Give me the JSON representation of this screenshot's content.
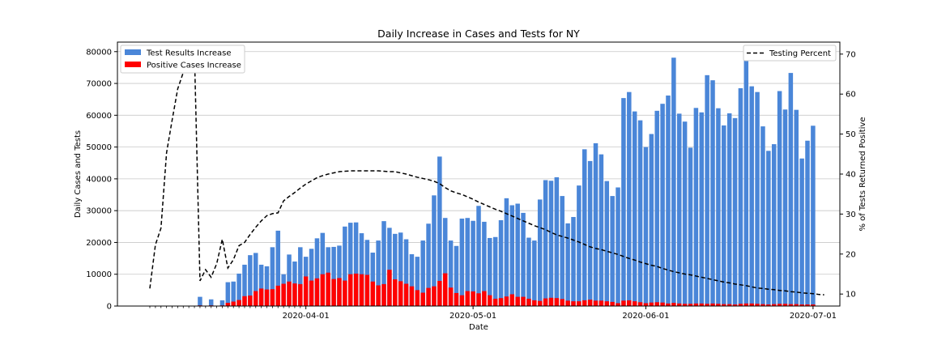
{
  "chart_data": {
    "type": "bar",
    "title": "Daily Increase in Cases and Tests for NY",
    "xlabel": "Date",
    "ylabel": "Daily Cases and Tests",
    "y2label": "% of Tests Returned Positive",
    "ylim": [
      0,
      83000
    ],
    "y2lim": [
      7,
      73
    ],
    "y_ticks": [
      0,
      10000,
      20000,
      30000,
      40000,
      50000,
      60000,
      70000,
      80000
    ],
    "y_tick_labels": [
      "0",
      "10000",
      "20000",
      "30000",
      "40000",
      "50000",
      "60000",
      "70000",
      "80000"
    ],
    "y2_ticks": [
      10,
      20,
      30,
      40,
      50,
      60,
      70
    ],
    "y2_tick_labels": [
      "10",
      "20",
      "30",
      "40",
      "50",
      "60",
      "70"
    ],
    "x_tick_dates": [
      "2020-04-01",
      "2020-05-01",
      "2020-06-01",
      "2020-07-01"
    ],
    "x_tick_labels": [
      "2020-04-01",
      "2020-05-01",
      "2020-06-01",
      "2020-07-01"
    ],
    "x_start": "2020-03-04",
    "x_end": "2020-06-30",
    "grid": "y",
    "legend_left": {
      "placement": "top-left",
      "entries": [
        {
          "label": "Test Results Increase",
          "color": "#4a86d8"
        },
        {
          "label": "Positive Cases Increase",
          "color": "#ff0000"
        }
      ]
    },
    "legend_right": {
      "placement": "top-right",
      "entries": [
        {
          "label": "Testing Percent",
          "color": "#000000",
          "style": "dashed"
        }
      ]
    },
    "series": [
      {
        "name": "Test Results Increase",
        "color": "#4a86d8",
        "values": [
          0,
          0,
          0,
          0,
          0,
          0,
          0,
          0,
          0,
          2900,
          0,
          2100,
          0,
          1800,
          7500,
          7700,
          10200,
          13000,
          16000,
          16700,
          13000,
          12500,
          18500,
          23700,
          10000,
          16200,
          14000,
          18500,
          15500,
          18000,
          21300,
          23000,
          18500,
          18600,
          19000,
          25000,
          26200,
          26300,
          22900,
          20800,
          16800,
          20600,
          26700,
          24600,
          22700,
          23100,
          21000,
          16300,
          15500,
          20600,
          25900,
          34800,
          47000,
          27700,
          20600,
          18900,
          27500,
          27700,
          26800,
          31500,
          26500,
          21400,
          21700,
          27000,
          33900,
          31700,
          32200,
          29300,
          21500,
          20600,
          33500,
          39600,
          39400,
          40500,
          34600,
          26000,
          28000,
          37900,
          49300,
          45600,
          51200,
          47700,
          39300,
          34600,
          37300,
          65400,
          67300,
          61200,
          58400,
          50000,
          54100,
          61400,
          63600,
          66200,
          78100,
          60500,
          58000,
          49800,
          62300,
          60900,
          72600,
          71000,
          62200,
          56800,
          60600,
          59100,
          68500,
          79700,
          69100,
          67300,
          56500,
          48800,
          50900,
          67600,
          61800,
          73300,
          61700,
          46400,
          52000,
          56700
        ]
      },
      {
        "name": "Positive Cases Increase",
        "color": "#ff0000",
        "values": [
          0,
          0,
          0,
          0,
          0,
          0,
          0,
          0,
          0,
          200,
          0,
          200,
          0,
          200,
          1000,
          1400,
          1900,
          3100,
          3300,
          4700,
          5500,
          5200,
          5300,
          6400,
          7000,
          7700,
          7100,
          6900,
          9300,
          8000,
          8700,
          10000,
          10500,
          8500,
          8800,
          8000,
          10000,
          10200,
          10000,
          9800,
          7700,
          6500,
          6900,
          11400,
          8400,
          7800,
          7000,
          6200,
          5000,
          4200,
          5700,
          6200,
          7900,
          10300,
          5800,
          4100,
          3400,
          4700,
          4600,
          4000,
          4700,
          3400,
          2300,
          2500,
          3000,
          3700,
          2900,
          2900,
          2300,
          1800,
          1600,
          2400,
          2600,
          2500,
          2200,
          1700,
          1500,
          1500,
          1800,
          2000,
          1700,
          1700,
          1500,
          1300,
          900,
          1700,
          1800,
          1500,
          1200,
          900,
          1100,
          1200,
          1100,
          800,
          1000,
          800,
          700,
          700,
          800,
          800,
          700,
          800,
          700,
          600,
          600,
          500,
          700,
          800,
          800,
          700,
          600,
          500,
          600,
          700,
          700,
          600,
          600,
          500,
          500,
          500
        ]
      },
      {
        "name": "Testing Percent",
        "color": "#000000",
        "style": "dashed",
        "axis": "right",
        "values": [
          11.4,
          22.3,
          26.5,
          45.3,
          53.5,
          61.3,
          65.4,
          70.1,
          70.6,
          13.3,
          16.1,
          14.2,
          17.6,
          23.7,
          16.5,
          18.6,
          22.1,
          22.9,
          24.9,
          26.7,
          28.3,
          29.6,
          30.1,
          30.3,
          33.3,
          34.4,
          35.4,
          36.5,
          37.5,
          38.3,
          39.1,
          39.6,
          40.0,
          40.3,
          40.6,
          40.7,
          40.8,
          40.8,
          40.8,
          40.8,
          40.8,
          40.8,
          40.7,
          40.6,
          40.6,
          40.3,
          40.0,
          39.6,
          39.2,
          38.9,
          38.6,
          38.2,
          37.6,
          36.6,
          35.8,
          35.3,
          34.9,
          34.3,
          33.7,
          33.0,
          32.4,
          31.8,
          31.2,
          30.7,
          30.1,
          29.5,
          28.9,
          28.3,
          27.7,
          27.1,
          26.6,
          26.1,
          25.4,
          24.8,
          24.4,
          24.0,
          23.5,
          23.0,
          22.4,
          21.8,
          21.4,
          21.1,
          20.7,
          20.3,
          19.9,
          19.4,
          18.9,
          18.5,
          18.0,
          17.6,
          17.2,
          16.9,
          16.4,
          16.0,
          15.6,
          15.3,
          15.0,
          14.8,
          14.5,
          14.2,
          13.9,
          13.6,
          13.3,
          13.0,
          12.8,
          12.5,
          12.3,
          12.1,
          11.8,
          11.5,
          11.4,
          11.2,
          11.1,
          10.9,
          10.8,
          10.6,
          10.5,
          10.3,
          10.2,
          10.1,
          9.9,
          9.8
        ]
      }
    ]
  }
}
